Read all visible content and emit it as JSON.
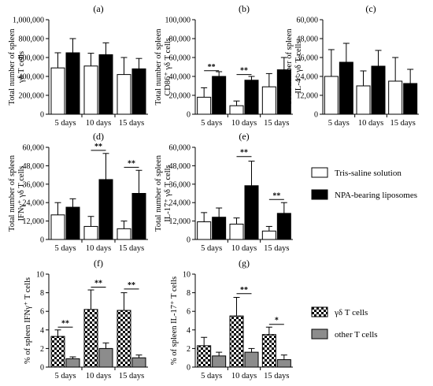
{
  "patterns": {
    "white": "#ffffff",
    "black": "#000000",
    "checker": "checker",
    "gray": "#8c8c8c"
  },
  "legends": [
    {
      "entries": [
        {
          "label": "Tris-saline solution",
          "fill": "white"
        },
        {
          "label": "NPA-bearing liposomes",
          "fill": "black"
        }
      ]
    },
    {
      "entries": [
        {
          "label": "γδ T cells",
          "fill": "checker"
        },
        {
          "label": "other T cells",
          "fill": "gray"
        }
      ]
    }
  ],
  "chart_data": [
    {
      "type": "bar",
      "panel": "(a)",
      "ylabel": [
        "Total number of spleen",
        "γδ T cells"
      ],
      "ylim": [
        0,
        1000000
      ],
      "yticks": [
        "0",
        "200,000",
        "400,000",
        "600,000",
        "800,000",
        "1,000,000"
      ],
      "categories": [
        "5 days",
        "10 days",
        "15 days"
      ],
      "series": [
        {
          "fill": "white",
          "values": [
            490000,
            510000,
            420000
          ],
          "errors": [
            160000,
            135000,
            180000
          ]
        },
        {
          "fill": "black",
          "values": [
            650000,
            630000,
            480000
          ],
          "errors": [
            150000,
            125000,
            110000
          ]
        }
      ],
      "significance": []
    },
    {
      "type": "bar",
      "panel": "(b)",
      "ylabel": [
        "Total number of spleen",
        "CD86⁺ γδ T cells"
      ],
      "ylim": [
        0,
        100000
      ],
      "yticks": [
        "0",
        "20,000",
        "40,000",
        "60,000",
        "80,000",
        "100,000"
      ],
      "categories": [
        "5 days",
        "10 days",
        "15 days"
      ],
      "series": [
        {
          "fill": "white",
          "values": [
            18000,
            9000,
            29000
          ],
          "errors": [
            10000,
            5000,
            14000
          ]
        },
        {
          "fill": "black",
          "values": [
            40000,
            36000,
            47000
          ],
          "errors": [
            5000,
            4000,
            13000
          ]
        }
      ],
      "significance": [
        {
          "category": 0,
          "label": "**",
          "y": 46000
        },
        {
          "category": 1,
          "label": "**",
          "y": 42000
        }
      ]
    },
    {
      "type": "bar",
      "panel": "(c)",
      "ylabel": [
        "Total number of spleen",
        "IL-4⁺ γδ T cells"
      ],
      "ylim": [
        0,
        60000
      ],
      "yticks": [
        "0",
        "12,000",
        "24,000",
        "36,000",
        "48,000",
        "60,000"
      ],
      "categories": [
        "5 days",
        "10 days",
        "15 days"
      ],
      "series": [
        {
          "fill": "white",
          "values": [
            24000,
            18000,
            21000
          ],
          "errors": [
            17000,
            9500,
            15000
          ]
        },
        {
          "fill": "black",
          "values": [
            33000,
            30500,
            19500
          ],
          "errors": [
            12000,
            10000,
            9000
          ]
        }
      ],
      "significance": []
    },
    {
      "type": "bar",
      "panel": "(d)",
      "ylabel": [
        "Total number of spleen",
        "IFNγ⁺ γδ T cells"
      ],
      "ylim": [
        0,
        60000
      ],
      "yticks": [
        "0",
        "12,000",
        "24,000",
        "36,000",
        "48,000",
        "60,000"
      ],
      "categories": [
        "5 days",
        "10 days",
        "15 days"
      ],
      "series": [
        {
          "fill": "white",
          "values": [
            16000,
            8500,
            7000
          ],
          "errors": [
            8000,
            6500,
            5000
          ]
        },
        {
          "fill": "black",
          "values": [
            21000,
            39000,
            30000
          ],
          "errors": [
            5500,
            17000,
            15000
          ]
        }
      ],
      "significance": [
        {
          "category": 1,
          "label": "**",
          "y": 58000
        },
        {
          "category": 2,
          "label": "**",
          "y": 47000
        }
      ]
    },
    {
      "type": "bar",
      "panel": "(e)",
      "ylabel": [
        "Total number of spleen",
        "IL-17⁺ γδ T cells"
      ],
      "ylim": [
        0,
        60000
      ],
      "yticks": [
        "0",
        "12,000",
        "24,000",
        "36,000",
        "48,000",
        "60,000"
      ],
      "categories": [
        "5 days",
        "10 days",
        "15 days"
      ],
      "series": [
        {
          "fill": "white",
          "values": [
            11500,
            10000,
            5500
          ],
          "errors": [
            6000,
            4000,
            3000
          ]
        },
        {
          "fill": "black",
          "values": [
            14500,
            35000,
            17000
          ],
          "errors": [
            6000,
            16000,
            7000
          ]
        }
      ],
      "significance": [
        {
          "category": 1,
          "label": "**",
          "y": 54000
        },
        {
          "category": 2,
          "label": "**",
          "y": 26000
        }
      ]
    },
    {
      "type": "bar",
      "panel": "(f)",
      "ylabel": [
        "% of spleen IFNγ⁺ T cells"
      ],
      "ylim": [
        0,
        10
      ],
      "yticks": [
        "0",
        "2",
        "4",
        "6",
        "8",
        "10"
      ],
      "categories": [
        "5 days",
        "10 days",
        "15 days"
      ],
      "series": [
        {
          "fill": "checker",
          "values": [
            3.3,
            6.2,
            6.1
          ],
          "errors": [
            0.7,
            2.1,
            1.9
          ]
        },
        {
          "fill": "gray",
          "values": [
            0.9,
            2.0,
            1.0
          ],
          "errors": [
            0.2,
            0.6,
            0.3
          ]
        }
      ],
      "significance": [
        {
          "category": 0,
          "label": "**",
          "y": 4.3
        },
        {
          "category": 1,
          "label": "**",
          "y": 8.6
        },
        {
          "category": 2,
          "label": "**",
          "y": 8.4
        }
      ]
    },
    {
      "type": "bar",
      "panel": "(g)",
      "ylabel": [
        "% of spleen IL-17⁺ T cells"
      ],
      "ylim": [
        0,
        10
      ],
      "yticks": [
        "0",
        "2",
        "4",
        "6",
        "8",
        "10"
      ],
      "categories": [
        "5 days",
        "10 days",
        "15 days"
      ],
      "series": [
        {
          "fill": "checker",
          "values": [
            2.3,
            5.5,
            3.5
          ],
          "errors": [
            0.9,
            2.0,
            0.8
          ]
        },
        {
          "fill": "gray",
          "values": [
            1.2,
            1.6,
            0.8
          ],
          "errors": [
            0.4,
            0.4,
            0.5
          ]
        }
      ],
      "significance": [
        {
          "category": 1,
          "label": "**",
          "y": 7.9
        },
        {
          "category": 2,
          "label": "*",
          "y": 4.6
        }
      ]
    }
  ]
}
